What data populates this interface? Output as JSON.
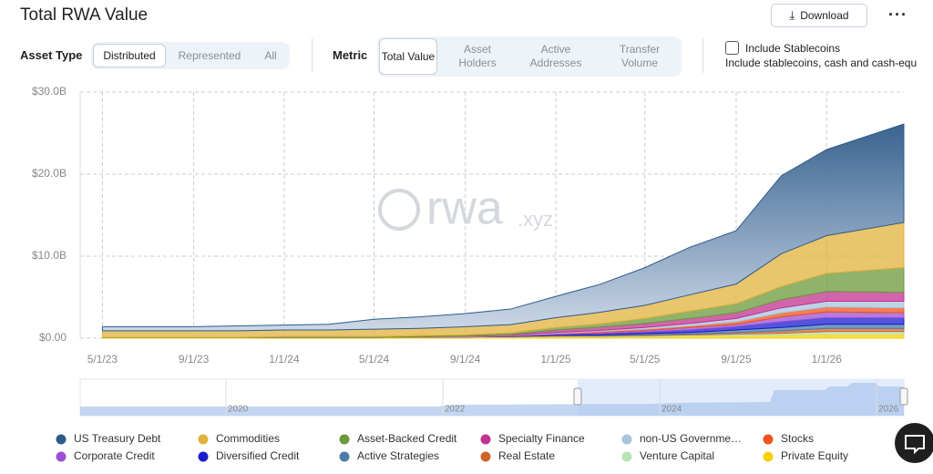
{
  "header": {
    "title": "Total RWA Value",
    "download": "Download"
  },
  "filters": {
    "asset_type_label": "Asset Type",
    "asset_types": [
      "Distributed",
      "Represented",
      "All"
    ],
    "metric_label": "Metric",
    "metrics": [
      "Total Value",
      "Asset Holders",
      "Active Addresses",
      "Transfer Volume"
    ],
    "stablecoins_label": "Include Stablecoins",
    "stablecoins_note": "Include stablecoins, cash and cash-equ"
  },
  "watermark": {
    "main": "rwa",
    "suffix": ".xyz"
  },
  "chart_data": {
    "type": "area",
    "stacked": true,
    "grid": true,
    "x": [
      "5/1/23",
      "7/1/23",
      "9/1/23",
      "11/1/23",
      "1/1/24",
      "3/1/24",
      "5/1/24",
      "7/1/24",
      "9/1/24",
      "11/1/24",
      "1/1/25",
      "3/1/25",
      "5/1/25",
      "7/1/25",
      "9/1/25",
      "11/1/25",
      "1/1/26",
      "4/15/26"
    ],
    "xlim": [
      "4/1/23",
      "4/15/26"
    ],
    "xticks": [
      "5/1/23",
      "9/1/23",
      "1/1/24",
      "5/1/24",
      "9/1/24",
      "1/1/25",
      "5/1/25",
      "9/1/25",
      "1/1/26"
    ],
    "ylim": [
      0,
      30
    ],
    "yticks": [
      {
        "value": 0,
        "label": "$0.00"
      },
      {
        "value": 10,
        "label": "$10.0B"
      },
      {
        "value": 20,
        "label": "$20.0B"
      },
      {
        "value": 30,
        "label": "$30.0B"
      }
    ],
    "series": [
      {
        "name": "US Treasury Debt",
        "color": "#2f5b8a",
        "values": [
          0.5,
          0.5,
          0.5,
          0.6,
          0.6,
          0.7,
          1.2,
          1.4,
          1.6,
          1.9,
          2.6,
          3.4,
          4.6,
          5.8,
          6.5,
          9.5,
          10.5,
          12.0
        ]
      },
      {
        "name": "Commodities",
        "color": "#e2b13c",
        "values": [
          0.8,
          0.8,
          0.8,
          0.8,
          0.8,
          0.8,
          0.9,
          0.9,
          1.0,
          1.0,
          1.2,
          1.4,
          1.6,
          2.0,
          2.4,
          4.0,
          4.6,
          5.5
        ]
      },
      {
        "name": "Asset-Backed Credit",
        "color": "#6b9a3a",
        "values": [
          0.05,
          0.05,
          0.05,
          0.05,
          0.1,
          0.1,
          0.1,
          0.1,
          0.1,
          0.2,
          0.3,
          0.4,
          0.6,
          0.9,
          1.1,
          1.6,
          2.2,
          3.0
        ]
      },
      {
        "name": "Specialty Finance",
        "color": "#c2328f",
        "values": [
          0,
          0,
          0,
          0,
          0,
          0,
          0,
          0.05,
          0.05,
          0.1,
          0.3,
          0.4,
          0.5,
          0.6,
          0.7,
          1.0,
          1.2,
          1.1
        ]
      },
      {
        "name": "non-US Governme…",
        "color": "#a9c4dd",
        "values": [
          0,
          0,
          0,
          0,
          0,
          0,
          0,
          0,
          0.05,
          0.05,
          0.1,
          0.15,
          0.2,
          0.3,
          0.4,
          0.6,
          0.7,
          0.8
        ]
      },
      {
        "name": "Stocks",
        "color": "#f0531c",
        "values": [
          0,
          0,
          0,
          0,
          0,
          0,
          0,
          0,
          0,
          0,
          0.05,
          0.1,
          0.15,
          0.2,
          0.3,
          0.5,
          0.6,
          0.6
        ]
      },
      {
        "name": "Corporate Credit",
        "color": "#9b4fd6",
        "values": [
          0,
          0,
          0,
          0,
          0,
          0,
          0,
          0,
          0.05,
          0.05,
          0.1,
          0.15,
          0.2,
          0.3,
          0.3,
          0.6,
          0.7,
          0.6
        ]
      },
      {
        "name": "Diversified Credit",
        "color": "#1c1ccf",
        "values": [
          0,
          0,
          0,
          0,
          0,
          0,
          0,
          0,
          0,
          0.05,
          0.1,
          0.15,
          0.2,
          0.3,
          0.4,
          0.7,
          0.8,
          0.8
        ]
      },
      {
        "name": "Active Strategies",
        "color": "#4a7ea8",
        "values": [
          0,
          0,
          0,
          0,
          0,
          0,
          0,
          0,
          0,
          0,
          0.05,
          0.1,
          0.15,
          0.2,
          0.3,
          0.4,
          0.5,
          0.5
        ]
      },
      {
        "name": "Real Estate",
        "color": "#d0652a",
        "values": [
          0,
          0,
          0,
          0,
          0,
          0,
          0,
          0,
          0,
          0,
          0.05,
          0.05,
          0.1,
          0.1,
          0.2,
          0.3,
          0.4,
          0.4
        ]
      },
      {
        "name": "Venture Capital",
        "color": "#b7e3b4",
        "values": [
          0,
          0,
          0,
          0,
          0,
          0,
          0,
          0,
          0,
          0,
          0.05,
          0.05,
          0.1,
          0.1,
          0.2,
          0.2,
          0.3,
          0.3
        ]
      },
      {
        "name": "Private Equity",
        "color": "#f5d10a",
        "values": [
          0.05,
          0.05,
          0.05,
          0.05,
          0.1,
          0.1,
          0.1,
          0.15,
          0.15,
          0.2,
          0.2,
          0.2,
          0.2,
          0.3,
          0.3,
          0.4,
          0.5,
          0.5
        ]
      }
    ]
  },
  "navigator": {
    "labels": [
      "2020",
      "2022",
      "2024",
      "2026"
    ]
  }
}
